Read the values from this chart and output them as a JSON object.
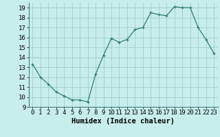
{
  "x": [
    0,
    1,
    2,
    3,
    4,
    5,
    6,
    7,
    8,
    9,
    10,
    11,
    12,
    13,
    14,
    15,
    16,
    17,
    18,
    19,
    20,
    21,
    22,
    23
  ],
  "y": [
    13.3,
    12.0,
    11.3,
    10.5,
    10.1,
    9.7,
    9.7,
    9.5,
    12.3,
    14.2,
    15.9,
    15.5,
    15.8,
    16.8,
    17.0,
    18.5,
    18.3,
    18.2,
    19.1,
    19.0,
    19.0,
    17.0,
    15.8,
    14.4
  ],
  "line_color": "#2e7d6e",
  "marker": "+",
  "bg_color": "#c8eded",
  "grid_color": "#9ecece",
  "xlabel": "Humidex (Indice chaleur)",
  "ylim": [
    9,
    19.5
  ],
  "xlim": [
    -0.5,
    23.5
  ],
  "yticks": [
    9,
    10,
    11,
    12,
    13,
    14,
    15,
    16,
    17,
    18,
    19
  ],
  "xticks": [
    0,
    1,
    2,
    3,
    4,
    5,
    6,
    7,
    8,
    9,
    10,
    11,
    12,
    13,
    14,
    15,
    16,
    17,
    18,
    19,
    20,
    21,
    22,
    23
  ],
  "xlabel_fontsize": 7.5,
  "tick_fontsize": 6.5
}
